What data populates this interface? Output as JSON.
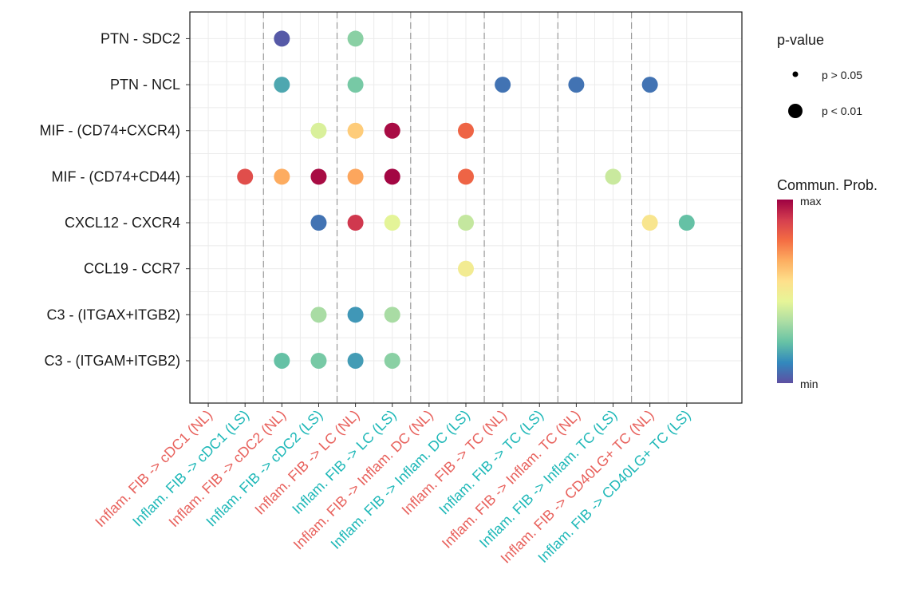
{
  "chart_data": {
    "type": "scatter",
    "title": "",
    "xlabel": "",
    "ylabel": "",
    "x_categories": [
      {
        "label": "Inflam. FIB -> cDC1 (NL)",
        "color": "#e8625d"
      },
      {
        "label": "Inflam. FIB -> cDC1 (LS)",
        "color": "#1fb8b8"
      },
      {
        "label": "Inflam. FIB -> cDC2 (NL)",
        "color": "#e8625d"
      },
      {
        "label": "Inflam. FIB -> cDC2 (LS)",
        "color": "#1fb8b8"
      },
      {
        "label": "Inflam. FIB -> LC (NL)",
        "color": "#e8625d"
      },
      {
        "label": "Inflam. FIB -> LC (LS)",
        "color": "#1fb8b8"
      },
      {
        "label": "Inflam. FIB -> Inflam. DC (NL)",
        "color": "#e8625d"
      },
      {
        "label": "Inflam. FIB -> Inflam. DC (LS)",
        "color": "#1fb8b8"
      },
      {
        "label": "Inflam. FIB -> TC (NL)",
        "color": "#e8625d"
      },
      {
        "label": "Inflam. FIB -> TC (LS)",
        "color": "#1fb8b8"
      },
      {
        "label": "Inflam. FIB -> Inflam. TC (NL)",
        "color": "#e8625d"
      },
      {
        "label": "Inflam. FIB -> Inflam. TC (LS)",
        "color": "#1fb8b8"
      },
      {
        "label": "Inflam. FIB -> CD40LG+ TC (NL)",
        "color": "#e8625d"
      },
      {
        "label": "Inflam. FIB -> CD40LG+ TC (LS)",
        "color": "#1fb8b8"
      }
    ],
    "y_categories": [
      "PTN - SDC2",
      "PTN - NCL",
      "MIF - (CD74+CXCR4)",
      "MIF - (CD74+CD44)",
      "CXCL12 - CXCR4",
      "CCL19 - CCR7",
      "C3 - (ITGAX+ITGB2)",
      "C3 - (ITGAM+ITGB2)"
    ],
    "group_separators_after_x_index": [
      1,
      3,
      5,
      7,
      9,
      11
    ],
    "grid": true,
    "points": [
      {
        "x": 2,
        "y": 0,
        "prob": 0.02,
        "pval": "p < 0.01"
      },
      {
        "x": 4,
        "y": 0,
        "prob": 0.28,
        "pval": "p < 0.01"
      },
      {
        "x": 2,
        "y": 1,
        "prob": 0.17,
        "pval": "p < 0.01"
      },
      {
        "x": 4,
        "y": 1,
        "prob": 0.25,
        "pval": "p < 0.01"
      },
      {
        "x": 8,
        "y": 1,
        "prob": 0.07,
        "pval": "p < 0.01"
      },
      {
        "x": 10,
        "y": 1,
        "prob": 0.07,
        "pval": "p < 0.01"
      },
      {
        "x": 12,
        "y": 1,
        "prob": 0.07,
        "pval": "p < 0.01"
      },
      {
        "x": 3,
        "y": 2,
        "prob": 0.42,
        "pval": "p < 0.01"
      },
      {
        "x": 4,
        "y": 2,
        "prob": 0.6,
        "pval": "p < 0.01"
      },
      {
        "x": 5,
        "y": 2,
        "prob": 0.98,
        "pval": "p < 0.01"
      },
      {
        "x": 7,
        "y": 2,
        "prob": 0.8,
        "pval": "p < 0.01"
      },
      {
        "x": 1,
        "y": 3,
        "prob": 0.85,
        "pval": "p < 0.01"
      },
      {
        "x": 2,
        "y": 3,
        "prob": 0.67,
        "pval": "p < 0.01"
      },
      {
        "x": 3,
        "y": 3,
        "prob": 0.98,
        "pval": "p < 0.01"
      },
      {
        "x": 4,
        "y": 3,
        "prob": 0.68,
        "pval": "p < 0.01"
      },
      {
        "x": 5,
        "y": 3,
        "prob": 0.99,
        "pval": "p < 0.01"
      },
      {
        "x": 7,
        "y": 3,
        "prob": 0.8,
        "pval": "p < 0.01"
      },
      {
        "x": 11,
        "y": 3,
        "prob": 0.39,
        "pval": "p < 0.01"
      },
      {
        "x": 3,
        "y": 4,
        "prob": 0.07,
        "pval": "p < 0.01"
      },
      {
        "x": 4,
        "y": 4,
        "prob": 0.9,
        "pval": "p < 0.01"
      },
      {
        "x": 5,
        "y": 4,
        "prob": 0.44,
        "pval": "p < 0.01"
      },
      {
        "x": 7,
        "y": 4,
        "prob": 0.38,
        "pval": "p < 0.01"
      },
      {
        "x": 12,
        "y": 4,
        "prob": 0.53,
        "pval": "p < 0.01"
      },
      {
        "x": 13,
        "y": 4,
        "prob": 0.22,
        "pval": "p < 0.01"
      },
      {
        "x": 7,
        "y": 5,
        "prob": 0.5,
        "pval": "p < 0.01"
      },
      {
        "x": 3,
        "y": 6,
        "prob": 0.33,
        "pval": "p < 0.01"
      },
      {
        "x": 4,
        "y": 6,
        "prob": 0.14,
        "pval": "p < 0.01"
      },
      {
        "x": 5,
        "y": 6,
        "prob": 0.33,
        "pval": "p < 0.01"
      },
      {
        "x": 2,
        "y": 7,
        "prob": 0.22,
        "pval": "p < 0.01"
      },
      {
        "x": 3,
        "y": 7,
        "prob": 0.25,
        "pval": "p < 0.01"
      },
      {
        "x": 4,
        "y": 7,
        "prob": 0.15,
        "pval": "p < 0.01"
      },
      {
        "x": 5,
        "y": 7,
        "prob": 0.28,
        "pval": "p < 0.01"
      }
    ],
    "legend": {
      "placement": "right",
      "pvalue_title": "p-value",
      "pvalue_entries": [
        "p > 0.05",
        "p < 0.01"
      ],
      "color_title": "Commun. Prob.",
      "color_max_label": "max",
      "color_min_label": "min",
      "colormap": [
        "#5e4fa2",
        "#3288bd",
        "#66c2a5",
        "#abdda4",
        "#e6f598",
        "#fee08b",
        "#fdae61",
        "#f46d43",
        "#d53e4f",
        "#9e0142"
      ]
    }
  }
}
